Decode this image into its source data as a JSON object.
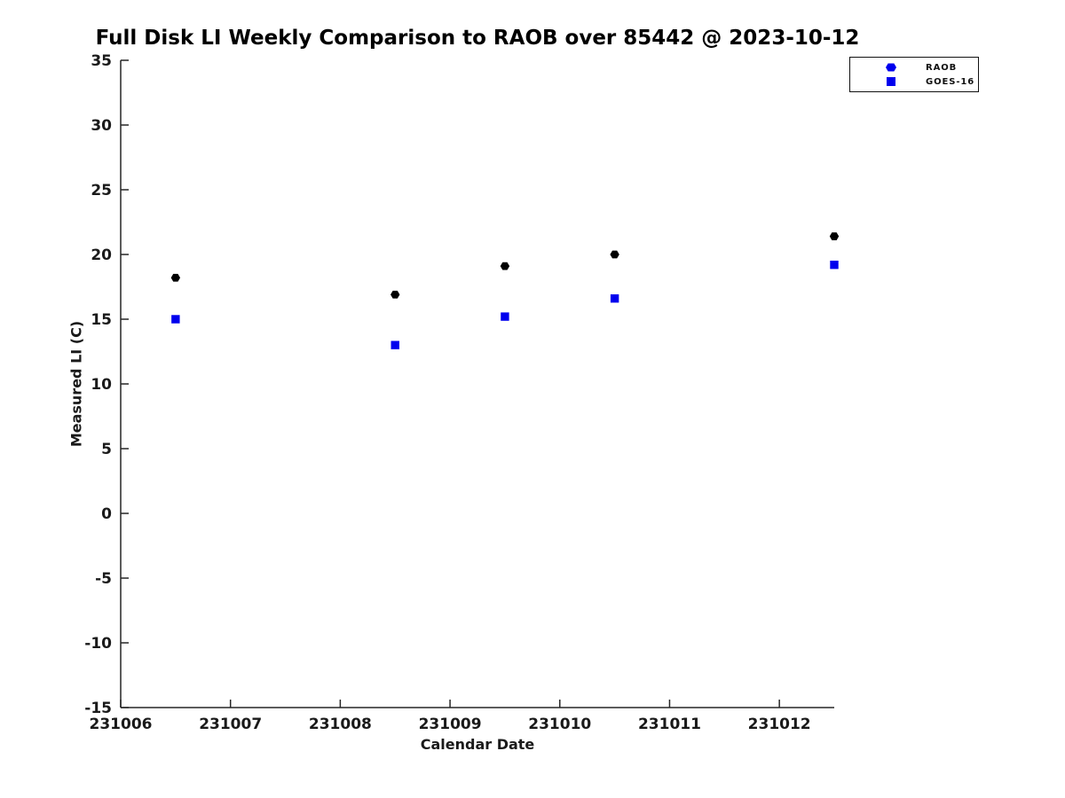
{
  "title": "Full Disk LI Weekly Comparison to RAOB over 85442 @ 2023-10-12",
  "axes": {
    "xlabel": "Calendar Date",
    "ylabel": "Measured LI (C)"
  },
  "legend": {
    "items": [
      {
        "label": "RAOB",
        "marker": "hexagon"
      },
      {
        "label": "GOES-16",
        "marker": "square"
      }
    ]
  },
  "colors": {
    "raob_marker": "#000000",
    "goes_marker": "#0000ee",
    "legend_marker": "#0000ee",
    "axis": "#262626",
    "text": "#1a1a1a"
  },
  "chart_data": {
    "type": "scatter",
    "title": "Full Disk LI Weekly Comparison to RAOB over 85442 @ 2023-10-12",
    "xlabel": "Calendar Date",
    "ylabel": "Measured LI (C)",
    "xlim": [
      231006,
      231012.5
    ],
    "ylim": [
      -15,
      35
    ],
    "xticks": [
      231006,
      231007,
      231008,
      231009,
      231010,
      231011,
      231012
    ],
    "yticks": [
      -15,
      -10,
      -5,
      0,
      5,
      10,
      15,
      20,
      25,
      30,
      35
    ],
    "grid": false,
    "legend_position": "outside-top-right",
    "series": [
      {
        "name": "RAOB",
        "marker": "hexagon",
        "color": "#000000",
        "legend_marker_color": "#0000ee",
        "x": [
          231006.5,
          231008.5,
          231009.5,
          231010.5,
          231012.5
        ],
        "y": [
          18.2,
          16.9,
          19.1,
          20.0,
          21.4
        ]
      },
      {
        "name": "GOES-16",
        "marker": "square",
        "color": "#0000ee",
        "legend_marker_color": "#0000ee",
        "x": [
          231006.5,
          231008.5,
          231009.5,
          231010.5,
          231012.5
        ],
        "y": [
          15.0,
          13.0,
          15.2,
          16.6,
          19.2
        ]
      }
    ]
  }
}
